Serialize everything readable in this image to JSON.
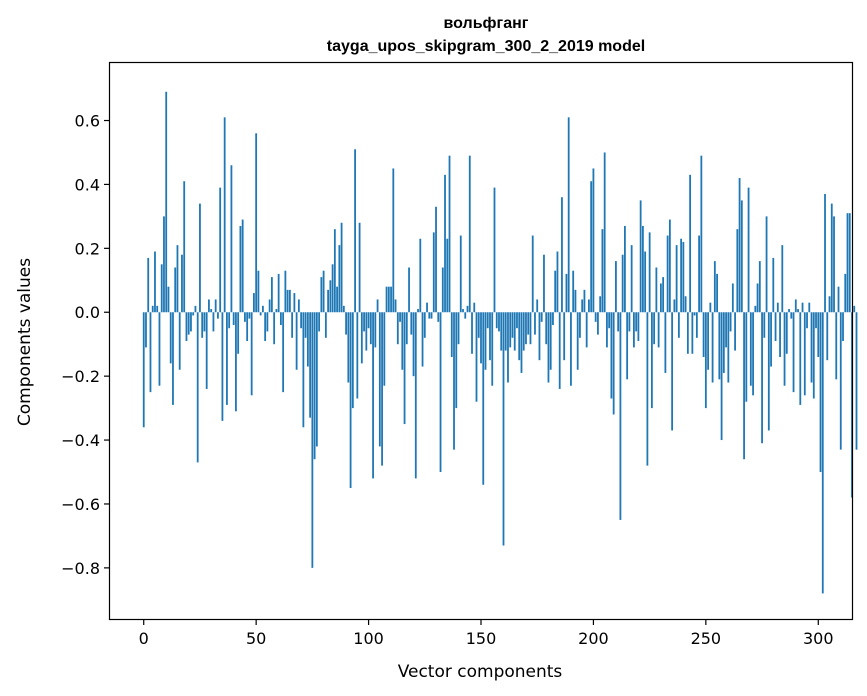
{
  "chart_data": {
    "type": "bar",
    "title": "вольфганг",
    "subtitle": "tayga_upos_skipgram_300_2_2019 model",
    "xlabel": "Vector components",
    "ylabel": "Components values",
    "xlim": [
      -15,
      315
    ],
    "ylim": [
      -0.96,
      0.78
    ],
    "xticks": [
      0,
      50,
      100,
      150,
      200,
      250,
      300
    ],
    "yticks": [
      -0.8,
      -0.6,
      -0.4,
      -0.2,
      0.0,
      0.2,
      0.4,
      0.6
    ],
    "ytick_labels": [
      "−0.8",
      "−0.6",
      "−0.4",
      "−0.2",
      "0.0",
      "0.2",
      "0.4",
      "0.6"
    ],
    "grid": false,
    "bar_color": "#1f77b4",
    "values": [
      -0.36,
      -0.11,
      0.17,
      -0.25,
      0.02,
      0.19,
      0.02,
      -0.23,
      0.15,
      0.3,
      0.69,
      0.08,
      -0.16,
      -0.29,
      0.14,
      0.21,
      -0.18,
      0.18,
      0.41,
      -0.09,
      -0.07,
      -0.06,
      -0.01,
      0.02,
      -0.47,
      0.34,
      -0.08,
      -0.06,
      -0.24,
      0.04,
      0.01,
      -0.06,
      0.04,
      -0.02,
      0.39,
      -0.34,
      0.61,
      -0.29,
      -0.05,
      0.46,
      -0.04,
      -0.31,
      -0.13,
      0.27,
      0.29,
      -0.03,
      -0.09,
      -0.02,
      -0.26,
      0.06,
      0.56,
      0.13,
      -0.01,
      0.02,
      -0.09,
      -0.06,
      0.04,
      0.11,
      -0.1,
      0.01,
      0.12,
      -0.04,
      -0.25,
      0.13,
      0.07,
      0.07,
      -0.08,
      0.06,
      -0.18,
      0.04,
      -0.05,
      -0.36,
      -0.08,
      -0.17,
      -0.33,
      -0.8,
      -0.46,
      -0.42,
      -0.06,
      0.11,
      0.13,
      -0.08,
      0.07,
      0.1,
      0.15,
      0.26,
      0.08,
      0.21,
      0.28,
      0.02,
      -0.07,
      -0.22,
      -0.55,
      -0.3,
      0.51,
      -0.27,
      0.28,
      -0.16,
      -0.06,
      -0.12,
      -0.05,
      -0.1,
      -0.52,
      -0.11,
      0.04,
      -0.42,
      -0.48,
      -0.23,
      0.08,
      0.08,
      0.08,
      0.45,
      0.04,
      -0.1,
      -0.03,
      -0.18,
      -0.35,
      -0.1,
      0.14,
      -0.07,
      -0.2,
      -0.52,
      0.01,
      0.23,
      -0.17,
      -0.08,
      0.03,
      -0.02,
      -0.02,
      0.25,
      0.33,
      -0.03,
      -0.5,
      0.14,
      0.43,
      0.23,
      0.49,
      -0.14,
      -0.43,
      -0.3,
      -0.1,
      0.24,
      0.01,
      -0.02,
      0.02,
      0.49,
      -0.13,
      0.03,
      -0.28,
      -0.08,
      -0.16,
      -0.54,
      -0.18,
      -0.05,
      -0.15,
      -0.23,
      0.39,
      -0.05,
      -0.06,
      -0.12,
      -0.73,
      -0.12,
      -0.22,
      -0.11,
      -0.08,
      -0.12,
      -0.05,
      -0.15,
      -0.19,
      -0.12,
      -0.1,
      -0.07,
      -0.1,
      0.24,
      -0.07,
      0.04,
      -0.15,
      -0.03,
      0.18,
      -0.1,
      -0.22,
      -0.18,
      -0.04,
      0.13,
      0.19,
      -0.24,
      0.36,
      -0.15,
      0.12,
      0.61,
      -0.23,
      0.13,
      0.07,
      -0.18,
      -0.08,
      0.04,
      0.07,
      -0.11,
      0.04,
      0.41,
      0.45,
      -0.03,
      -0.07,
      0.05,
      0.26,
      0.5,
      -0.11,
      -0.05,
      -0.27,
      -0.32,
      0.16,
      -0.06,
      -0.65,
      0.18,
      0.27,
      -0.21,
      -0.06,
      0.21,
      -0.11,
      -0.06,
      -0.09,
      0.35,
      0.27,
      0.19,
      -0.48,
      0.25,
      -0.3,
      -0.1,
      0.14,
      -0.11,
      0.09,
      0.11,
      -0.19,
      0.24,
      0.29,
      -0.37,
      0.04,
      0.21,
      -0.08,
      0.23,
      0.22,
      0.05,
      -0.13,
      0.43,
      -0.13,
      -0.01,
      -0.08,
      0.24,
      0.49,
      -0.14,
      -0.3,
      -0.18,
      0.03,
      -0.22,
      0.16,
      0.12,
      -0.21,
      -0.4,
      -0.19,
      -0.11,
      -0.22,
      -0.06,
      0.09,
      -0.12,
      0.26,
      0.42,
      0.35,
      -0.46,
      -0.28,
      0.39,
      -0.23,
      -0.26,
      0.02,
      0.09,
      0.16,
      -0.41,
      -0.08,
      0.3,
      -0.37,
      -0.17,
      0.17,
      -0.09,
      0.03,
      -0.14,
      0.21,
      -0.23,
      -0.13,
      0.01,
      -0.02,
      -0.25,
      0.04,
      0.01,
      -0.29,
      0.03,
      -0.26,
      -0.05,
      0.03,
      -0.22,
      -0.27,
      -0.05,
      -0.14,
      -0.5,
      -0.88,
      0.37,
      -0.15,
      0.05,
      0.34,
      0.3,
      -0.21,
      0.08,
      -0.43,
      -0.09,
      0.12,
      0.31,
      0.31,
      -0.58,
      0.02,
      -0.43
    ]
  }
}
